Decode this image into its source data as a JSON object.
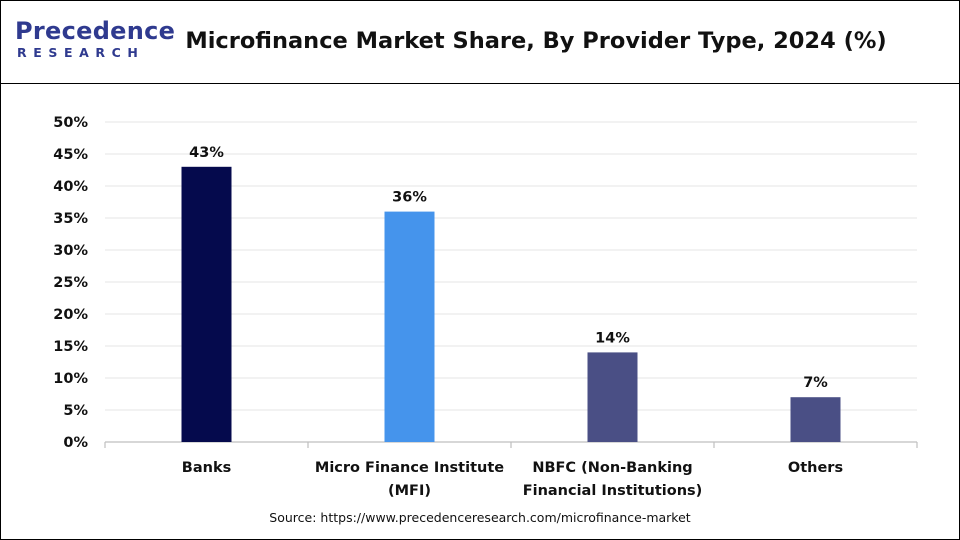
{
  "header": {
    "logo_top": "Precedence",
    "logo_bottom": "RESEARCH",
    "title": "Microfinance Market Share, By Provider Type, 2024 (%)"
  },
  "footer": {
    "source": "Source: https://www.precedenceresearch.com/microfinance-market"
  },
  "chart_data": {
    "type": "bar",
    "title": "Microfinance Market Share, By Provider Type, 2024 (%)",
    "xlabel": "",
    "ylabel": "",
    "categories": [
      [
        "Banks"
      ],
      [
        "Micro Finance Institute",
        "(MFI)"
      ],
      [
        "NBFC (Non-Banking",
        "Financial Institutions)"
      ],
      [
        "Others"
      ]
    ],
    "values": [
      43,
      36,
      14,
      7
    ],
    "data_labels": [
      "43%",
      "36%",
      "14%",
      "7%"
    ],
    "bar_colors": [
      "#050a4d",
      "#4594ec",
      "#4a4f85",
      "#4a4f85"
    ],
    "ylim": [
      0,
      50
    ],
    "yticks": [
      0,
      5,
      10,
      15,
      20,
      25,
      30,
      35,
      40,
      45,
      50
    ],
    "ytick_labels": [
      "0%",
      "5%",
      "10%",
      "15%",
      "20%",
      "25%",
      "30%",
      "35%",
      "40%",
      "45%",
      "50%"
    ],
    "grid": true,
    "legend": "none"
  }
}
